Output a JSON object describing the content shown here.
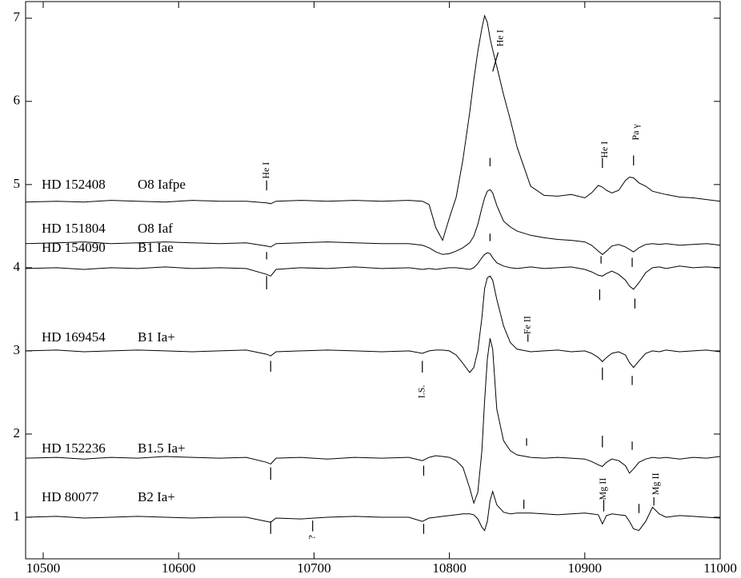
{
  "chart_data": {
    "type": "line",
    "x": [
      10487,
      10510,
      10530,
      10550,
      10570,
      10590,
      10610,
      10630,
      10650,
      10665,
      10668,
      10672,
      10690,
      10710,
      10730,
      10750,
      10770,
      10780,
      10785,
      10790,
      10795,
      10800,
      10805,
      10810,
      10815,
      10818,
      10821,
      10824,
      10826,
      10828,
      10830,
      10832,
      10835,
      10840,
      10845,
      10850,
      10860,
      10870,
      10880,
      10890,
      10900,
      10905,
      10910,
      10913,
      10916,
      10920,
      10925,
      10930,
      10933,
      10936,
      10940,
      10945,
      10950,
      10955,
      10960,
      10970,
      10980,
      10990,
      11000
    ],
    "series": [
      {
        "name": "HD 152408",
        "spectral_type": "O8 Iafpe",
        "color": "#000000",
        "values": [
          4.79,
          4.8,
          4.79,
          4.81,
          4.8,
          4.79,
          4.81,
          4.8,
          4.8,
          4.78,
          4.77,
          4.8,
          4.81,
          4.8,
          4.81,
          4.8,
          4.81,
          4.8,
          4.76,
          4.48,
          4.33,
          4.6,
          4.85,
          5.3,
          5.87,
          6.26,
          6.6,
          6.88,
          7.03,
          6.95,
          6.76,
          6.62,
          6.42,
          6.08,
          5.78,
          5.45,
          4.98,
          4.87,
          4.86,
          4.88,
          4.84,
          4.9,
          4.99,
          4.97,
          4.93,
          4.9,
          4.93,
          5.05,
          5.09,
          5.08,
          5.02,
          4.98,
          4.92,
          4.9,
          4.88,
          4.85,
          4.84,
          4.82,
          4.8
        ]
      },
      {
        "name": "HD 151804",
        "spectral_type": "O8 Iaf",
        "color": "#000000",
        "values": [
          4.29,
          4.3,
          4.31,
          4.29,
          4.3,
          4.31,
          4.3,
          4.29,
          4.3,
          4.26,
          4.25,
          4.29,
          4.3,
          4.31,
          4.3,
          4.29,
          4.29,
          4.27,
          4.24,
          4.19,
          4.16,
          4.17,
          4.2,
          4.24,
          4.3,
          4.38,
          4.52,
          4.72,
          4.84,
          4.92,
          4.94,
          4.9,
          4.75,
          4.56,
          4.49,
          4.44,
          4.39,
          4.36,
          4.34,
          4.33,
          4.31,
          4.27,
          4.2,
          4.16,
          4.2,
          4.26,
          4.28,
          4.25,
          4.22,
          4.19,
          4.24,
          4.28,
          4.29,
          4.28,
          4.29,
          4.27,
          4.28,
          4.29,
          4.27
        ]
      },
      {
        "name": "HD 154090",
        "spectral_type": "B1 Iae",
        "color": "#000000",
        "values": [
          3.99,
          4.0,
          3.98,
          4.0,
          3.99,
          4.01,
          3.99,
          4.0,
          3.99,
          3.92,
          3.9,
          3.98,
          4.0,
          3.99,
          4.01,
          3.99,
          4.0,
          3.98,
          3.99,
          3.98,
          3.99,
          4.0,
          4.0,
          3.99,
          3.98,
          4.0,
          4.05,
          4.12,
          4.16,
          4.18,
          4.17,
          4.12,
          4.06,
          4.02,
          4.0,
          3.99,
          4.01,
          3.99,
          4.0,
          4.01,
          3.98,
          3.95,
          3.91,
          3.9,
          3.93,
          3.96,
          3.92,
          3.85,
          3.78,
          3.74,
          3.82,
          3.94,
          4.0,
          4.01,
          3.99,
          4.02,
          4.0,
          4.01,
          4.0
        ]
      },
      {
        "name": "HD 169454",
        "spectral_type": "B1 Ia+",
        "color": "#000000",
        "values": [
          3.0,
          3.01,
          2.99,
          3.0,
          3.01,
          3.0,
          2.99,
          3.0,
          3.01,
          2.96,
          2.94,
          2.99,
          3.0,
          3.01,
          3.0,
          2.99,
          3.0,
          2.97,
          3.0,
          3.01,
          3.01,
          3.0,
          2.95,
          2.85,
          2.74,
          2.8,
          3.0,
          3.4,
          3.75,
          3.88,
          3.9,
          3.85,
          3.62,
          3.3,
          3.1,
          3.02,
          2.99,
          3.0,
          3.01,
          2.99,
          3.0,
          2.97,
          2.92,
          2.87,
          2.92,
          2.97,
          2.99,
          2.95,
          2.86,
          2.8,
          2.88,
          2.97,
          3.0,
          2.99,
          3.01,
          2.99,
          3.0,
          3.01,
          2.99
        ]
      },
      {
        "name": "HD 152236",
        "spectral_type": "B1.5 Ia+",
        "color": "#000000",
        "values": [
          1.71,
          1.72,
          1.7,
          1.72,
          1.71,
          1.73,
          1.72,
          1.71,
          1.72,
          1.66,
          1.64,
          1.71,
          1.72,
          1.7,
          1.72,
          1.71,
          1.72,
          1.68,
          1.72,
          1.74,
          1.73,
          1.72,
          1.68,
          1.6,
          1.35,
          1.17,
          1.3,
          1.8,
          2.4,
          2.9,
          3.15,
          3.02,
          2.3,
          1.92,
          1.8,
          1.75,
          1.72,
          1.71,
          1.72,
          1.71,
          1.7,
          1.67,
          1.63,
          1.61,
          1.66,
          1.7,
          1.68,
          1.62,
          1.53,
          1.58,
          1.66,
          1.7,
          1.72,
          1.71,
          1.72,
          1.7,
          1.72,
          1.71,
          1.73
        ]
      },
      {
        "name": "HD 80077",
        "spectral_type": "B2 Ia+",
        "color": "#000000",
        "values": [
          1.0,
          1.01,
          0.99,
          1.0,
          1.01,
          1.0,
          0.99,
          1.0,
          1.0,
          0.95,
          0.94,
          0.99,
          0.98,
          1.0,
          1.01,
          1.0,
          1.0,
          0.95,
          0.99,
          1.0,
          1.01,
          1.02,
          1.03,
          1.04,
          1.04,
          1.03,
          0.98,
          0.88,
          0.84,
          0.95,
          1.2,
          1.31,
          1.15,
          1.06,
          1.04,
          1.05,
          1.05,
          1.04,
          1.03,
          1.04,
          1.05,
          1.04,
          1.03,
          0.92,
          1.02,
          1.04,
          1.03,
          1.02,
          0.95,
          0.86,
          0.84,
          0.95,
          1.12,
          1.04,
          1.0,
          1.02,
          1.01,
          1.0,
          0.99
        ]
      }
    ],
    "annotations": [
      {
        "text": "He I",
        "x": 10665,
        "y": 5.17
      },
      {
        "text": "He I",
        "x": 10838,
        "y": 6.76
      },
      {
        "text": "He I",
        "x": 10915,
        "y": 5.42
      },
      {
        "text": "Pa γ",
        "x": 10938,
        "y": 5.63
      },
      {
        "text": "Fe II",
        "x": 10858,
        "y": 3.31
      },
      {
        "text": "I.S.",
        "x": 10780,
        "y": 2.51
      },
      {
        "text": "Mg II",
        "x": 10914,
        "y": 1.34
      },
      {
        "text": "Mg II",
        "x": 10953,
        "y": 1.4
      },
      {
        "text": "?",
        "x": 10699,
        "y": 0.76
      }
    ],
    "markers": [
      {
        "x": 10665,
        "y0": 5.05,
        "y1": 4.93
      },
      {
        "x": 10913,
        "y0": 5.32,
        "y1": 5.2
      },
      {
        "x": 10936,
        "y0": 5.35,
        "y1": 5.23
      },
      {
        "x": 10858,
        "y0": 3.2,
        "y1": 3.11
      },
      {
        "x": 10780,
        "y0": 2.88,
        "y1": 2.74
      },
      {
        "x": 10914,
        "y0": 1.21,
        "y1": 1.07
      },
      {
        "x": 10951,
        "y0": 1.24,
        "y1": 1.14
      },
      {
        "x": 10699,
        "y0": 0.96,
        "y1": 0.83
      },
      {
        "x": 10832,
        "x2": 10836,
        "y0": 6.36,
        "y1": 6.59
      },
      {
        "x": 10665,
        "y0": 4.19,
        "y1": 4.1
      },
      {
        "x": 10665,
        "y0": 3.9,
        "y1": 3.74
      },
      {
        "x": 10668,
        "y0": 2.88,
        "y1": 2.75
      },
      {
        "x": 10668,
        "y0": 1.6,
        "y1": 1.45
      },
      {
        "x": 10668,
        "y0": 0.95,
        "y1": 0.8
      },
      {
        "x": 10781,
        "y0": 1.62,
        "y1": 1.5
      },
      {
        "x": 10781,
        "y0": 0.92,
        "y1": 0.8
      },
      {
        "x": 10830,
        "y0": 5.32,
        "y1": 5.22
      },
      {
        "x": 10830,
        "y0": 4.41,
        "y1": 4.32
      },
      {
        "x": 10857,
        "y0": 1.95,
        "y1": 1.86
      },
      {
        "x": 10855,
        "y0": 1.21,
        "y1": 1.1
      },
      {
        "x": 10913,
        "y0": 1.98,
        "y1": 1.84
      },
      {
        "x": 10912,
        "y0": 4.14,
        "y1": 4.05
      },
      {
        "x": 10911,
        "y0": 3.74,
        "y1": 3.61
      },
      {
        "x": 10913,
        "y0": 2.8,
        "y1": 2.65
      },
      {
        "x": 10935,
        "y0": 4.12,
        "y1": 4.01
      },
      {
        "x": 10937,
        "y0": 3.63,
        "y1": 3.51
      },
      {
        "x": 10935,
        "y0": 2.7,
        "y1": 2.59
      },
      {
        "x": 10935,
        "y0": 1.91,
        "y1": 1.81
      },
      {
        "x": 10940,
        "y0": 1.16,
        "y1": 1.05
      }
    ],
    "xlim": [
      10487,
      11000
    ],
    "ylim": [
      0.5,
      7.2
    ],
    "xticks": [
      10500,
      10600,
      10700,
      10800,
      10900,
      11000
    ],
    "yticks": [
      1,
      2,
      3,
      4,
      5,
      6,
      7
    ]
  }
}
